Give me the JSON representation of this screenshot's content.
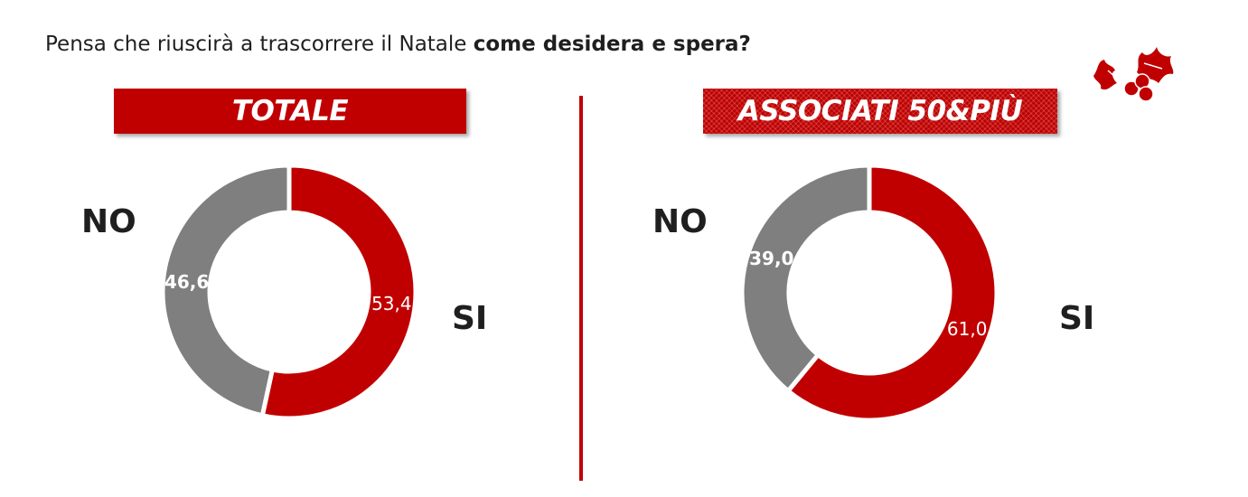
{
  "question": {
    "prefix": "Pensa che riuscirà a trascorrere il Natale ",
    "emphasis": "come desidera e spera?"
  },
  "colors": {
    "accent": "#c00000",
    "gray": "#7f7f7f"
  },
  "icons": {
    "decoration": "holly-icon"
  },
  "chart_data": [
    {
      "type": "pie",
      "title": "TOTALE",
      "categories": [
        "SI",
        "NO"
      ],
      "values": [
        53.4,
        46.6
      ],
      "value_labels": [
        "53,4",
        "46,6"
      ],
      "colors": [
        "#c00000",
        "#7f7f7f"
      ],
      "labels": {
        "yes": "SI",
        "no": "NO"
      }
    },
    {
      "type": "pie",
      "title": "ASSOCIATI 50&PIÙ",
      "categories": [
        "SI",
        "NO"
      ],
      "values": [
        61.0,
        39.0
      ],
      "value_labels": [
        "61,0",
        "39,0"
      ],
      "colors": [
        "#c00000",
        "#7f7f7f"
      ],
      "labels": {
        "yes": "SI",
        "no": "NO"
      }
    }
  ]
}
